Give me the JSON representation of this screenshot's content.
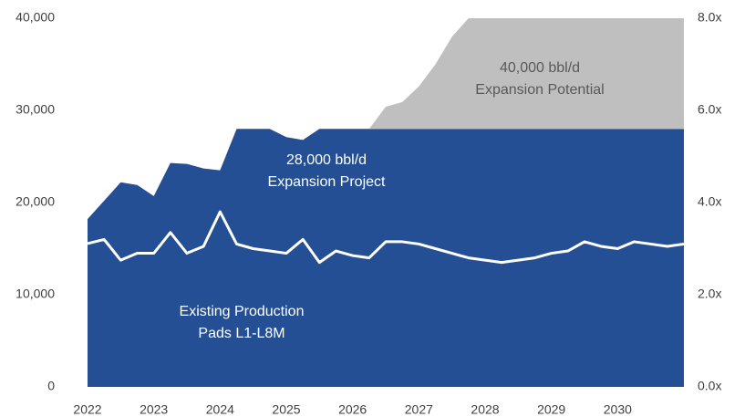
{
  "chart_data": {
    "type": "area",
    "x": [
      2022,
      2022.25,
      2022.5,
      2022.75,
      2023,
      2023.25,
      2023.5,
      2023.75,
      2024,
      2024.25,
      2024.5,
      2024.75,
      2025,
      2025.25,
      2025.5,
      2025.75,
      2026,
      2026.25,
      2026.5,
      2026.75,
      2027,
      2027.25,
      2027.5,
      2027.75,
      2028,
      2028.25,
      2028.5,
      2028.75,
      2029,
      2029.25,
      2029.5,
      2029.75,
      2030,
      2030.25,
      2030.5,
      2030.75,
      2031
    ],
    "xlim": [
      2022,
      2031
    ],
    "xticks": [
      2022,
      2023,
      2024,
      2025,
      2026,
      2027,
      2028,
      2029,
      2030
    ],
    "ylim": [
      0,
      40000
    ],
    "yticks": [
      0,
      {
        "value": 10000,
        "label": "10,000"
      },
      {
        "value": 20000,
        "label": "20,000"
      },
      {
        "value": 30000,
        "label": "30,000"
      },
      {
        "value": 40000,
        "label": "40,000"
      }
    ],
    "y2lim": [
      0,
      8
    ],
    "y2ticks": [
      {
        "value": 0,
        "label": "0.0x"
      },
      {
        "value": 2,
        "label": "2.0x"
      },
      {
        "value": 4,
        "label": "4.0x"
      },
      {
        "value": 6,
        "label": "6.0x"
      },
      {
        "value": 8,
        "label": "8.0x"
      }
    ],
    "series": [
      {
        "color": "#244f94",
        "stacked": true,
        "values": [
          18200,
          20200,
          22200,
          21900,
          20700,
          24300,
          24200,
          23700,
          23500,
          28000,
          28000,
          28000,
          27100,
          26800,
          28000,
          28000,
          28000,
          28000,
          28000,
          28000,
          28000,
          28000,
          28000,
          28000,
          28000,
          28000,
          28000,
          28000,
          28000,
          28000,
          28000,
          28000,
          28000,
          28000,
          28000,
          28000,
          28000
        ]
      },
      {
        "color": "#bfbfbf",
        "stacked": true,
        "values": [
          0,
          0,
          0,
          0,
          0,
          0,
          0,
          0,
          0,
          0,
          0,
          0,
          0,
          0,
          0,
          0,
          0,
          0,
          2400,
          2900,
          4600,
          7000,
          10000,
          12000,
          12000,
          12000,
          12000,
          12000,
          12000,
          12000,
          12000,
          12000,
          12000,
          12000,
          12000,
          12000,
          12000
        ]
      },
      {
        "color": "#ffffff",
        "kind": "line",
        "axis": "y2",
        "values": [
          3.11,
          3.2,
          2.75,
          2.9,
          2.9,
          3.35,
          2.9,
          3.05,
          3.8,
          3.1,
          3.0,
          2.95,
          2.9,
          3.2,
          2.7,
          2.95,
          2.85,
          2.8,
          3.15,
          3.15,
          3.1,
          3.0,
          2.9,
          2.8,
          2.75,
          2.7,
          2.75,
          2.8,
          2.9,
          2.95,
          3.15,
          3.05,
          3.0,
          3.15,
          3.1,
          3.05,
          3.1
        ]
      }
    ],
    "annotations": [
      {
        "lines": [
          "40,000 bbl/d",
          "Expansion Potential"
        ],
        "color": "#595959"
      },
      {
        "lines": [
          "28,000 bbl/d",
          "Expansion Project"
        ],
        "color": "#ffffff"
      },
      {
        "lines": [
          "Existing Production",
          "Pads L1-L8M"
        ],
        "color": "#ffffff"
      }
    ]
  }
}
